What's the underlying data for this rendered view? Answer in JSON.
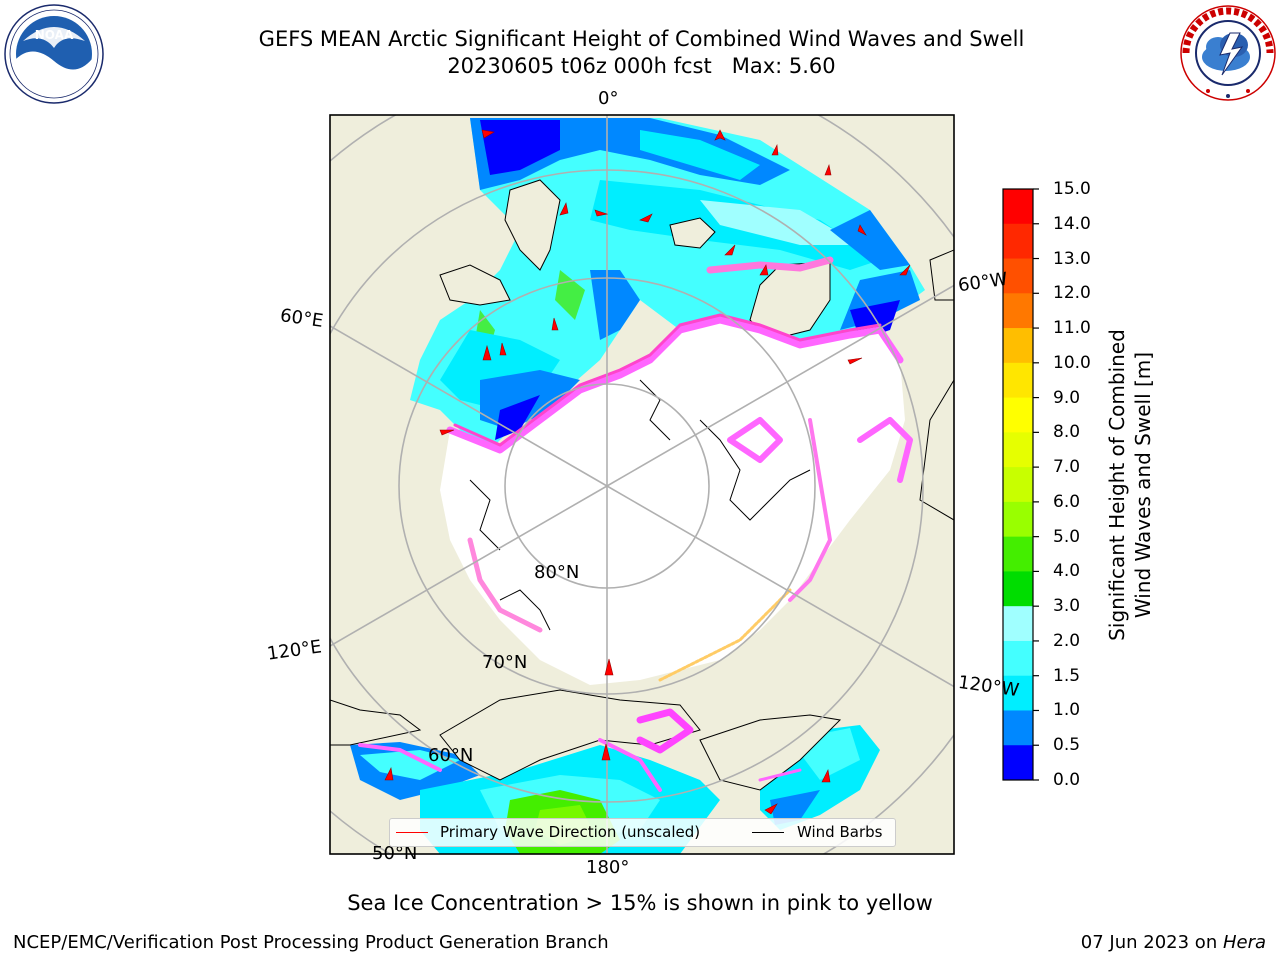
{
  "title": {
    "line1": "GEFS MEAN Arctic Significant Height of Combined Wind Waves and Swell",
    "line2": "20230605 t06z 000h fcst   Max: 5.60"
  },
  "logos": {
    "left": "NOAA",
    "right": "NATIONAL WEATHER SERVICE"
  },
  "map": {
    "projection": "north-polar-stereographic",
    "colors": {
      "land": "#efeedc",
      "ice_free_center": "#ffffff",
      "graticule": "#b0b0b0",
      "coast": "#000000"
    },
    "lon_labels": [
      "0°",
      "60°E",
      "120°E",
      "180°",
      "120°W",
      "60°W"
    ],
    "lat_labels": [
      "80°N",
      "70°N",
      "60°N",
      "50°N"
    ],
    "legend": {
      "wave_label": "Primary Wave Direction (unscaled)",
      "wave_color": "#ff0000",
      "barb_label": "Wind Barbs",
      "barb_color": "#000000"
    }
  },
  "colorbar": {
    "label_line1": "Significant Height of Combined",
    "label_line2": "Wind Waves and Swell [m]",
    "ticks": [
      "15.0",
      "14.0",
      "13.0",
      "12.0",
      "11.0",
      "10.0",
      "9.0",
      "8.0",
      "7.0",
      "6.0",
      "5.0",
      "4.0",
      "3.0",
      "2.0",
      "1.5",
      "1.0",
      "0.5",
      "0.0"
    ],
    "colors_top_to_bottom": [
      "#ff0000",
      "#ff2800",
      "#ff5000",
      "#ff7800",
      "#ff9600",
      "#ffbe00",
      "#ffe600",
      "#ffff00",
      "#e6ff00",
      "#c8ff00",
      "#99ff00",
      "#44ee00",
      "#00dd00",
      "#44ff77",
      "#a0ffff",
      "#44ffff",
      "#00eeff",
      "#0088ff",
      "#0000ff"
    ]
  },
  "subtitle": "Sea Ice Concentration > 15% is shown in pink to yellow",
  "footer": {
    "left": "NCEP/EMC/Verification Post Processing Product Generation Branch",
    "right_date": "07 Jun 2023 on ",
    "right_host": "Hera"
  }
}
